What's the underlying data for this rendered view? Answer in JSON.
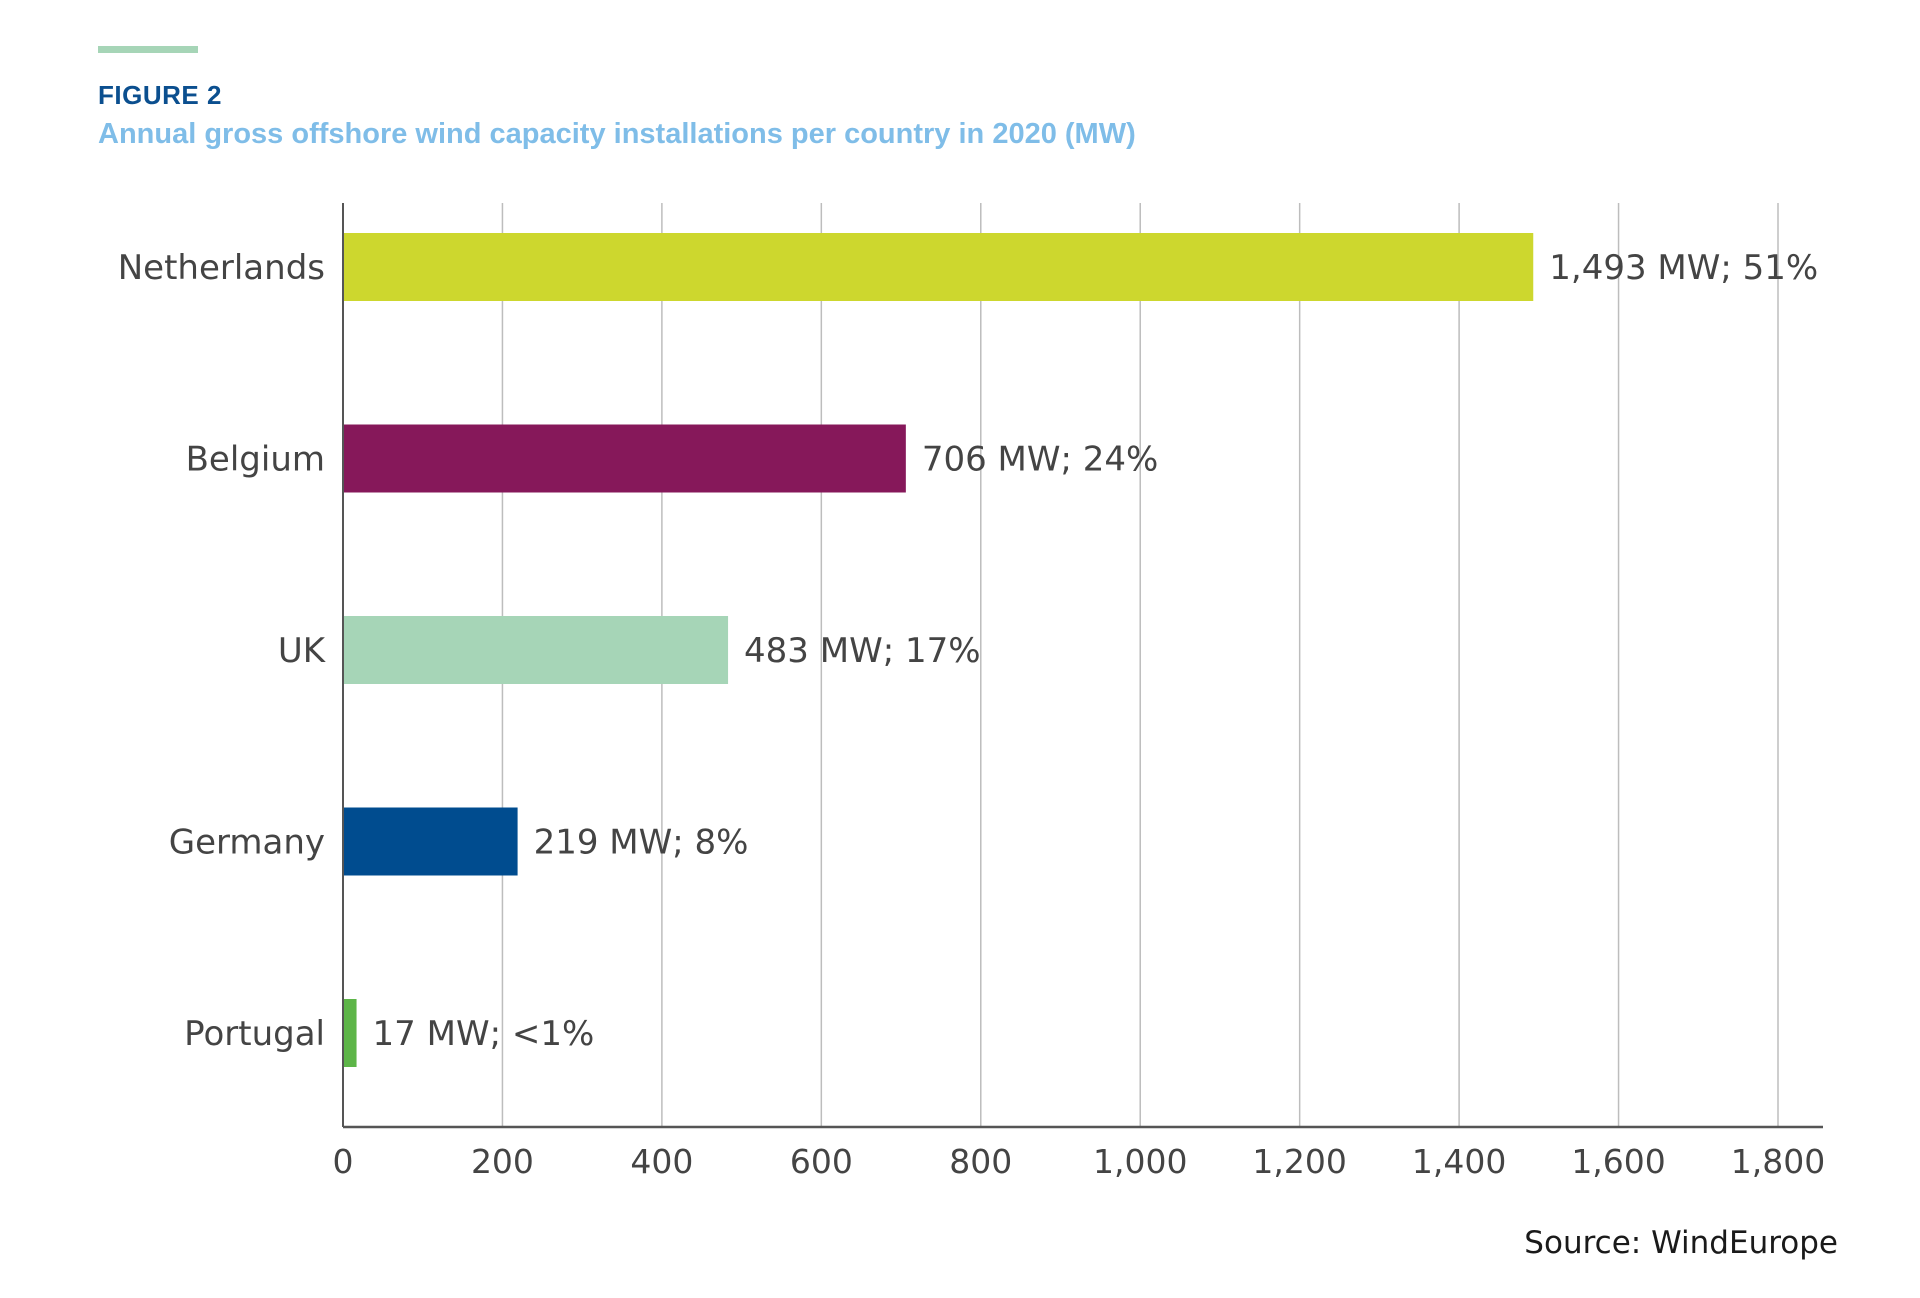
{
  "header": {
    "figure_label": "FIGURE 2",
    "title": "Annual gross offshore wind capacity installations per country in 2020 (MW)"
  },
  "colors": {
    "accent_rule": "#a6d5b7",
    "figure_label": "#0b4f8f",
    "title": "#7fbde8",
    "grid": "#bdbdbd",
    "axis": "#555555",
    "text": "#444444"
  },
  "source": "Source: WindEurope",
  "chart_data": {
    "type": "bar",
    "orientation": "horizontal",
    "title": "Annual gross offshore wind capacity installations per country in 2020 (MW)",
    "xlabel": "",
    "ylabel": "",
    "xlim": [
      0,
      1800
    ],
    "x_ticks": [
      0,
      200,
      400,
      600,
      800,
      1000,
      1200,
      1400,
      1600,
      1800
    ],
    "x_tick_labels": [
      "0",
      "200",
      "400",
      "600",
      "800",
      "1,000",
      "1,200",
      "1,400",
      "1,600",
      "1,800"
    ],
    "grid": "vertical",
    "categories": [
      "Netherlands",
      "Belgium",
      "UK",
      "Germany",
      "Portugal"
    ],
    "values": [
      1493,
      706,
      483,
      219,
      17
    ],
    "shares": [
      "51%",
      "24%",
      "17%",
      "8%",
      "<1%"
    ],
    "data_labels": [
      "1,493 MW; 51%",
      "706 MW; 24%",
      "483 MW; 17%",
      "219 MW; 8%",
      "17 MW; <1%"
    ],
    "bar_colors": [
      "#cdd72e",
      "#86185a",
      "#a6d5b7",
      "#004c8f",
      "#5db548"
    ]
  }
}
